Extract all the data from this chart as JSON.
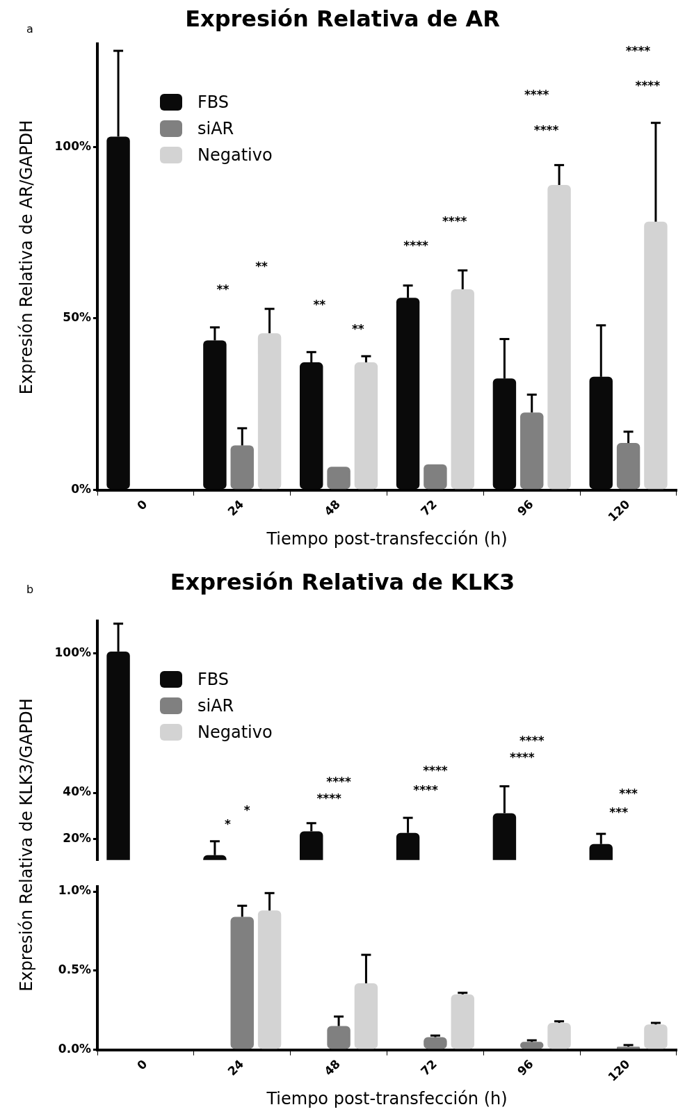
{
  "chart_data": [
    {
      "type": "bar",
      "title": "Expresión Relativa de AR",
      "ylabel": "Expresión Relativa de AR/GAPDH",
      "xlabel": "Tiempo post-transfección (h)",
      "categories": [
        "0",
        "24",
        "48",
        "72",
        "96",
        "120"
      ],
      "series": [
        {
          "name": "FBS",
          "color": "#0a0a0a",
          "values": [
            103,
            43.6,
            37.2,
            56,
            32.5,
            33
          ],
          "errors": [
            [
              103,
              128
            ],
            [
              43.6,
              47.4
            ],
            [
              37.2,
              40.2
            ],
            [
              56,
              59.6
            ],
            [
              32.5,
              44
            ],
            [
              33,
              48
            ]
          ]
        },
        {
          "name": "siAR",
          "color": "#808080",
          "values": [
            null,
            13,
            6.8,
            7.5,
            22.6,
            13.7
          ],
          "errors": [
            null,
            [
              13,
              18
            ],
            null,
            null,
            [
              22.6,
              27.8
            ],
            [
              13.7,
              17
            ]
          ]
        },
        {
          "name": "Negativo",
          "color": "#d3d3d3",
          "values": [
            null,
            45.7,
            37.2,
            58.5,
            88.9,
            78.2
          ],
          "errors": [
            null,
            [
              45.7,
              52.8
            ],
            [
              37.2,
              39
            ],
            [
              58.5,
              64
            ],
            [
              88.9,
              94.7
            ],
            [
              78.2,
              107
            ]
          ]
        }
      ],
      "ylim": [
        0,
        130
      ],
      "yticks": [
        {
          "value": 0,
          "label": "0%"
        },
        {
          "value": 50,
          "label": "50%"
        },
        {
          "value": 100,
          "label": "100%"
        }
      ],
      "grid": false,
      "legend": "top left",
      "annotations": [
        "a",
        "**",
        "**",
        "**",
        "**",
        "****",
        "****",
        "****",
        "****",
        "****",
        "****"
      ]
    },
    {
      "type": "bar",
      "title": "Expresión Relativa de KLK3",
      "ylabel": "Expresión Relativa de KLK3/GAPDH",
      "categories": [
        "0",
        "24",
        "48",
        "72",
        "96",
        "120"
      ],
      "series": [
        {
          "name": "FBS",
          "color": "#0a0a0a",
          "values": [
            100.9,
            13.1,
            23.4,
            22.7,
            31.2,
            17.9
          ],
          "errors": [
            [
              100.9,
              112.9
            ],
            [
              13.1,
              19.1
            ],
            [
              23.4,
              26.9
            ],
            [
              22.7,
              29.2
            ],
            [
              31.2,
              42.8
            ],
            [
              17.9,
              22.3
            ]
          ]
        },
        {
          "name": "siAR",
          "color": "#808080",
          "values": [
            null,
            null,
            null,
            null,
            null,
            null
          ]
        },
        {
          "name": "Negativo",
          "color": "#d3d3d3",
          "values": [
            null,
            null,
            null,
            null,
            null,
            null
          ]
        }
      ],
      "ylim": [
        11,
        114
      ],
      "yticks": [
        {
          "value": 20,
          "label": "20%"
        },
        {
          "value": 40,
          "label": "40%"
        },
        {
          "value": 100,
          "label": "100%"
        }
      ],
      "grid": false,
      "legend": "top left",
      "tick_labels": "y",
      "annotations": [
        "b",
        "*",
        "*",
        "****",
        "****",
        "****",
        "****",
        "****",
        "****",
        "***",
        "***"
      ]
    },
    {
      "type": "bar",
      "xlabel": "Tiempo post-transfección (h)",
      "categories": [
        "0",
        "24",
        "48",
        "72",
        "96",
        "120"
      ],
      "series": [
        {
          "color": "#0a0a0a",
          "values": [
            null,
            null,
            null,
            null,
            null,
            null
          ]
        },
        {
          "color": "#808080",
          "values": [
            null,
            0.84,
            0.15,
            0.08,
            0.05,
            0.02
          ],
          "errors": [
            null,
            [
              0.84,
              0.91
            ],
            [
              0.15,
              0.21
            ],
            [
              0.08,
              0.09
            ],
            [
              0.05,
              0.06
            ],
            [
              0.02,
              0.03
            ]
          ]
        },
        {
          "color": "#d3d3d3",
          "values": [
            null,
            0.88,
            0.42,
            0.35,
            0.17,
            0.16
          ],
          "errors": [
            null,
            [
              0.88,
              0.99
            ],
            [
              0.42,
              0.6
            ],
            [
              0.35,
              0.36
            ],
            [
              0.17,
              0.18
            ],
            [
              0.16,
              0.17
            ]
          ]
        }
      ],
      "ylim": [
        0,
        1.03
      ],
      "yticks": [
        {
          "value": 0,
          "label": "0.0%"
        },
        {
          "value": 0.5,
          "label": "0.5%"
        },
        {
          "value": 1,
          "label": "1.0%"
        }
      ],
      "grid": false
    }
  ]
}
